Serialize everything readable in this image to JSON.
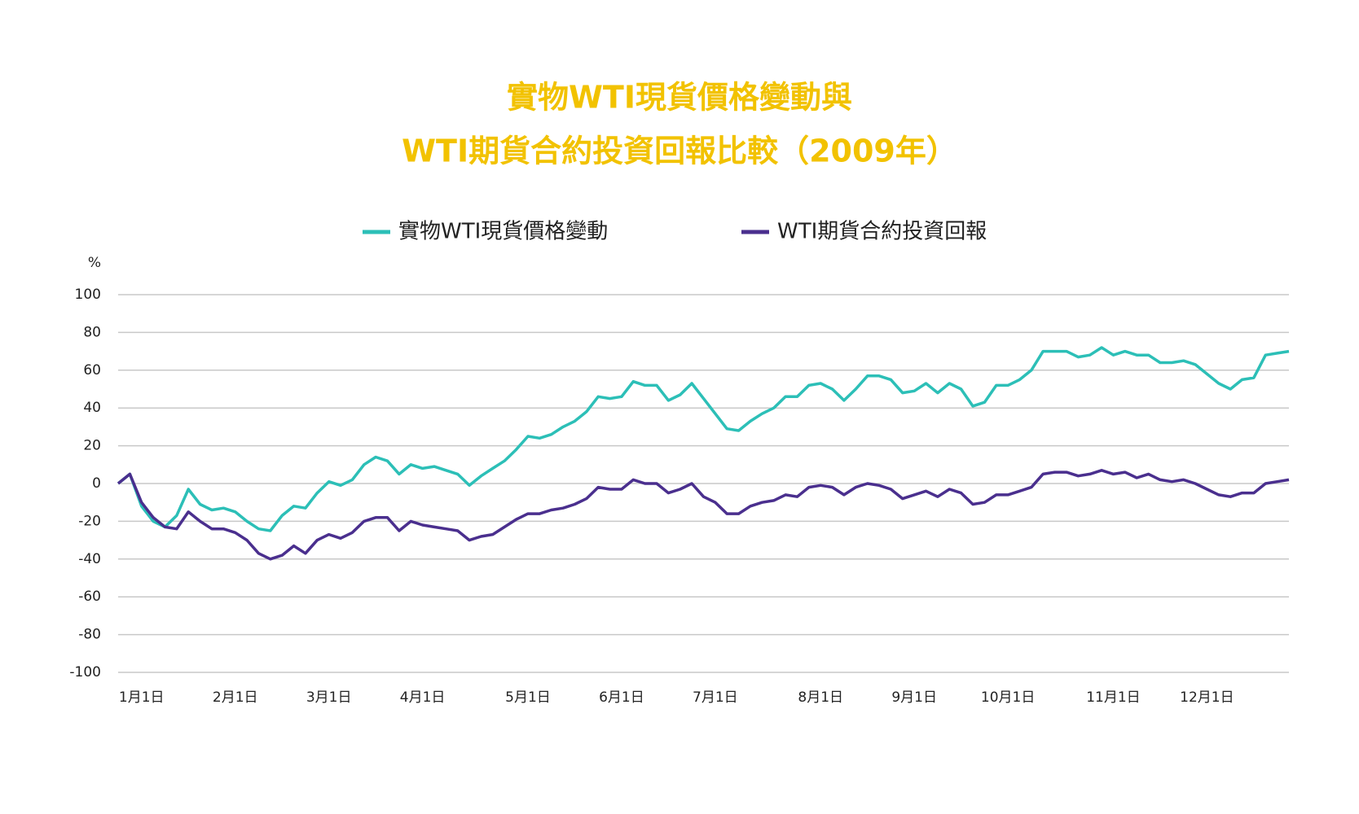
{
  "chart_data": {
    "type": "line",
    "title": [
      "實物WTI現貨價格變動與",
      "WTI期貨合約投資回報比較（2009年）"
    ],
    "y_label": "%",
    "legend": "top",
    "grid": true,
    "ylim": [
      -100,
      100
    ],
    "yticks": [
      -100,
      -80,
      -60,
      -40,
      -20,
      0,
      20,
      40,
      60,
      80,
      100
    ],
    "categories": [
      null,
      null,
      "1月1日",
      null,
      null,
      null,
      null,
      null,
      null,
      null,
      "2月1日",
      null,
      null,
      null,
      null,
      null,
      null,
      null,
      "3月1日",
      null,
      null,
      null,
      null,
      null,
      null,
      null,
      "4月1日",
      null,
      null,
      null,
      null,
      null,
      null,
      null,
      null,
      "5月1日",
      null,
      null,
      null,
      null,
      null,
      null,
      null,
      "6月1日",
      null,
      null,
      null,
      null,
      null,
      null,
      null,
      "7月1日",
      null,
      null,
      null,
      null,
      null,
      null,
      null,
      null,
      "8月1日",
      null,
      null,
      null,
      null,
      null,
      null,
      null,
      "9月1日",
      null,
      null,
      null,
      null,
      null,
      null,
      null,
      "10月1日",
      null,
      null,
      null,
      null,
      null,
      null,
      null,
      null,
      "11月1日",
      null,
      null,
      null,
      null,
      null,
      null,
      null,
      "12月1日",
      null,
      null,
      null,
      null,
      null,
      null,
      null
    ],
    "series": [
      {
        "name": "實物WTI現貨價格變動",
        "color": "#2cbfb7",
        "values": [
          0,
          5,
          -12,
          -20,
          -23,
          -17,
          -3,
          -11,
          -14,
          -13,
          -15,
          -20,
          -24,
          -25,
          -17,
          -12,
          -13,
          -5,
          1,
          -1,
          2,
          10,
          14,
          12,
          5,
          10,
          8,
          9,
          7,
          5,
          -1,
          4,
          8,
          12,
          18,
          25,
          24,
          26,
          30,
          33,
          38,
          46,
          45,
          46,
          54,
          52,
          52,
          44,
          47,
          53,
          45,
          37,
          29,
          28,
          33,
          37,
          40,
          46,
          46,
          52,
          53,
          50,
          44,
          50,
          57,
          57,
          55,
          48,
          49,
          53,
          48,
          53,
          50,
          41,
          43,
          52,
          52,
          55,
          60,
          70,
          70,
          70,
          67,
          68,
          72,
          68,
          70,
          68,
          68,
          64,
          64,
          65,
          63,
          58,
          53,
          50,
          55,
          56,
          68,
          69,
          70
        ]
      },
      {
        "name": "WTI期貨合約投資回報",
        "color": "#4a2f8e",
        "values": [
          0,
          5,
          -10,
          -18,
          -23,
          -24,
          -15,
          -20,
          -24,
          -24,
          -26,
          -30,
          -37,
          -40,
          -38,
          -33,
          -37,
          -30,
          -27,
          -29,
          -26,
          -20,
          -18,
          -18,
          -25,
          -20,
          -22,
          -23,
          -24,
          -25,
          -30,
          -28,
          -27,
          -23,
          -19,
          -16,
          -16,
          -14,
          -13,
          -11,
          -8,
          -2,
          -3,
          -3,
          2,
          0,
          0,
          -5,
          -3,
          0,
          -7,
          -10,
          -16,
          -16,
          -12,
          -10,
          -9,
          -6,
          -7,
          -2,
          -1,
          -2,
          -6,
          -2,
          0,
          -1,
          -3,
          -8,
          -6,
          -4,
          -7,
          -3,
          -5,
          -11,
          -10,
          -6,
          -6,
          -4,
          -2,
          5,
          6,
          6,
          4,
          5,
          7,
          5,
          6,
          3,
          5,
          2,
          1,
          2,
          0,
          -3,
          -6,
          -7,
          -5,
          -5,
          0,
          1,
          2
        ]
      }
    ]
  }
}
